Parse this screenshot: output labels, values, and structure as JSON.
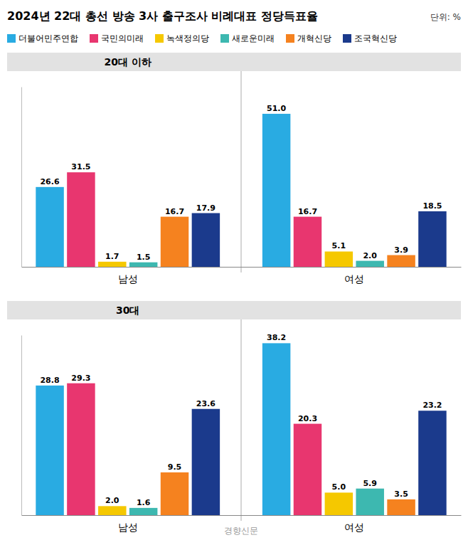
{
  "chart_data": [
    {
      "type": "bar",
      "title": "2024년 22대 총선 방송 3사 출구조사 비례대표 정당득표율",
      "subtitle": "단위: %",
      "annotations": [
        "20대 이하"
      ],
      "categories": [
        "남성",
        "여성"
      ],
      "series": [
        {
          "name": "더불어민주연합",
          "color": "#29ABE2",
          "values": [
            26.6,
            51.0
          ],
          "value_labels": [
            "26.6",
            "51.0"
          ]
        },
        {
          "name": "국민의미래",
          "color": "#E8366F",
          "values": [
            31.5,
            16.7
          ],
          "value_labels": [
            "31.5",
            "16.7"
          ]
        },
        {
          "name": "녹색정의당",
          "color": "#F5C800",
          "values": [
            1.7,
            5.1
          ],
          "value_labels": [
            "1.7",
            "5.1"
          ]
        },
        {
          "name": "새로운미래",
          "color": "#3DB8B0",
          "values": [
            1.5,
            2.0
          ],
          "value_labels": [
            "1.5",
            "2.0"
          ]
        },
        {
          "name": "개혁신당",
          "color": "#F5821F",
          "values": [
            16.7,
            3.9
          ],
          "value_labels": [
            "16.7",
            "3.9"
          ]
        },
        {
          "name": "조국혁신당",
          "color": "#1B3A8C",
          "values": [
            17.9,
            18.5
          ],
          "value_labels": [
            "17.9",
            "18.5"
          ]
        }
      ],
      "ylim": [
        0,
        60
      ],
      "data_labels": true,
      "tick_labels": "x",
      "legend": "top"
    },
    {
      "type": "bar",
      "annotations": [
        "30대",
        "경향신문"
      ],
      "categories": [
        "남성",
        "여성"
      ],
      "series": [
        {
          "name": "더불어민주연합",
          "color": "#29ABE2",
          "values": [
            28.8,
            38.2
          ],
          "value_labels": [
            "28.8",
            "38.2"
          ]
        },
        {
          "name": "국민의미래",
          "color": "#E8366F",
          "values": [
            29.3,
            20.3
          ],
          "value_labels": [
            "29.3",
            "20.3"
          ]
        },
        {
          "name": "녹색정의당",
          "color": "#F5C800",
          "values": [
            2.0,
            5.0
          ],
          "value_labels": [
            "2.0",
            "5.0"
          ]
        },
        {
          "name": "새로운미래",
          "color": "#3DB8B0",
          "values": [
            1.6,
            5.9
          ],
          "value_labels": [
            "1.6",
            "5.9"
          ]
        },
        {
          "name": "개혁신당",
          "color": "#F5821F",
          "values": [
            9.5,
            3.5
          ],
          "value_labels": [
            "9.5",
            "3.5"
          ]
        },
        {
          "name": "조국혁신당",
          "color": "#1B3A8C",
          "values": [
            23.6,
            23.2
          ],
          "value_labels": [
            "23.6",
            "23.2"
          ]
        }
      ],
      "ylim": [
        0,
        40
      ],
      "data_labels": true,
      "tick_labels": "x"
    }
  ]
}
